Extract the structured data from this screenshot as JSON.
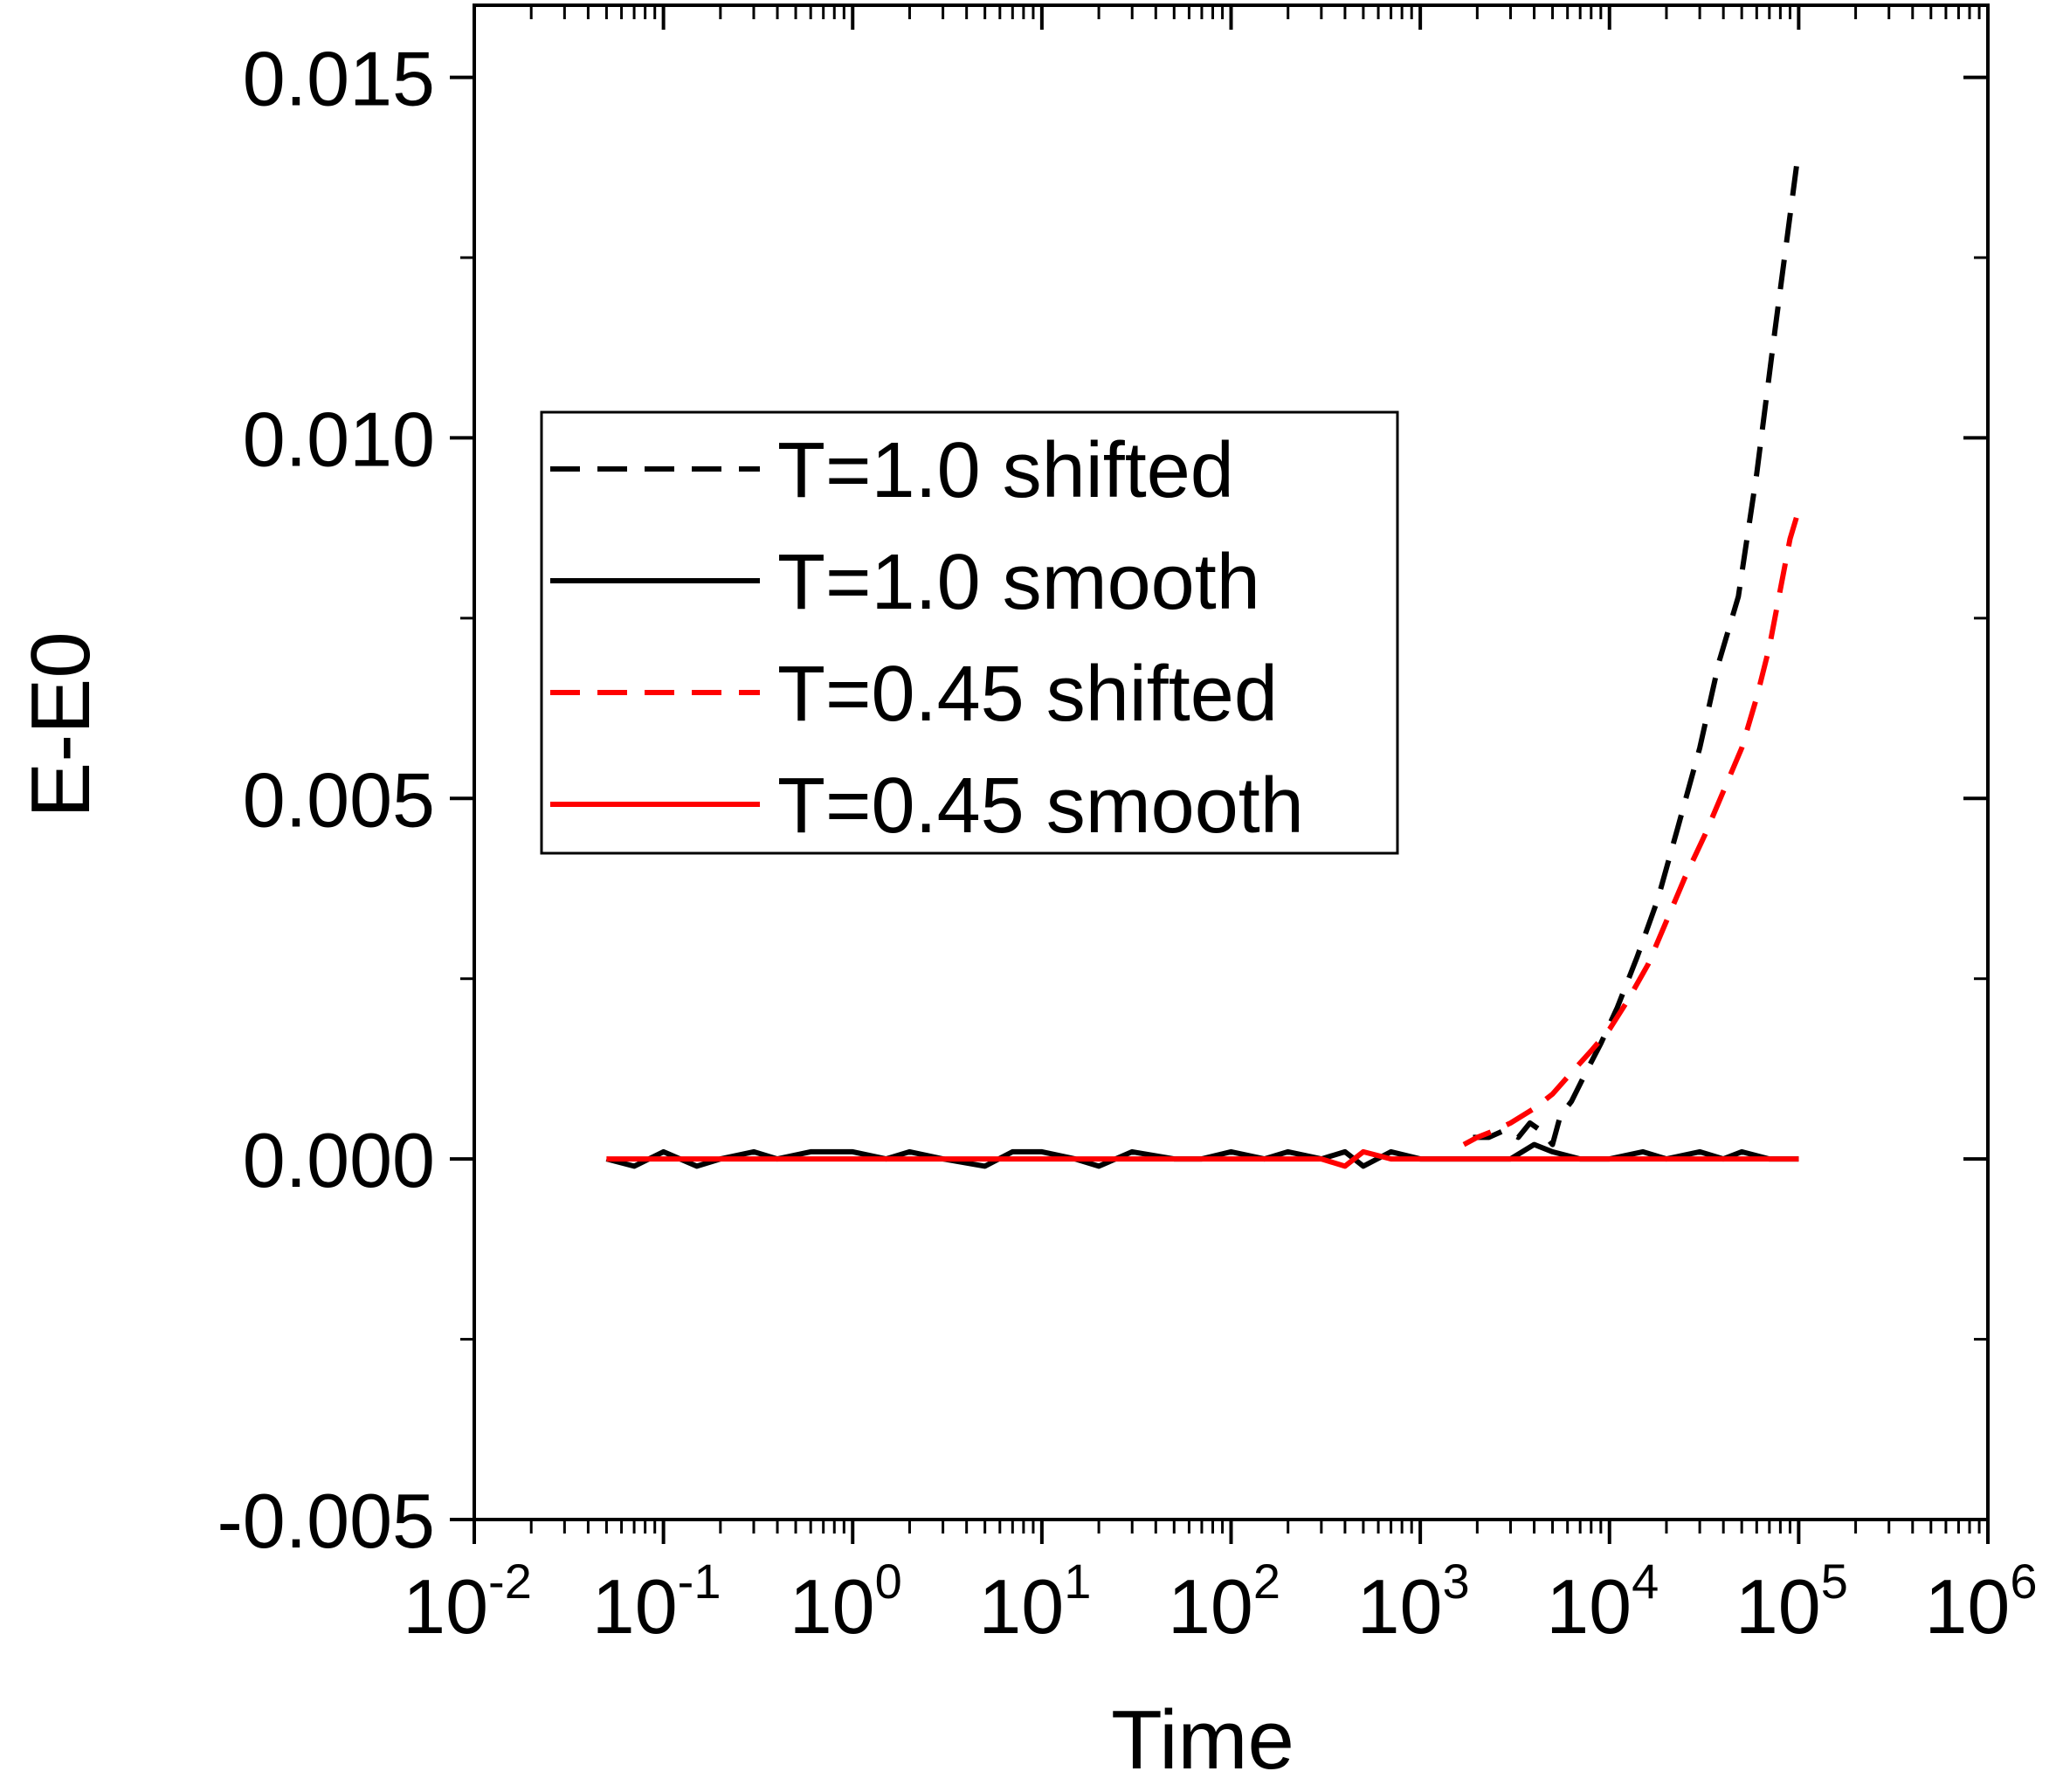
{
  "chart_data": {
    "type": "line",
    "xlabel": "Time",
    "ylabel": "E-E0",
    "xscale": "log",
    "xlim": [
      0.01,
      1000000
    ],
    "ylim": [
      -0.005,
      0.016
    ],
    "grid": false,
    "legend_position": "upper-left",
    "x_ticks": [
      {
        "value": 0.01,
        "base": "10",
        "exp": "-2"
      },
      {
        "value": 0.1,
        "base": "10",
        "exp": "-1"
      },
      {
        "value": 1,
        "base": "10",
        "exp": "0"
      },
      {
        "value": 10,
        "base": "10",
        "exp": "1"
      },
      {
        "value": 100,
        "base": "10",
        "exp": "2"
      },
      {
        "value": 1000,
        "base": "10",
        "exp": "3"
      },
      {
        "value": 10000,
        "base": "10",
        "exp": "4"
      },
      {
        "value": 100000,
        "base": "10",
        "exp": "5"
      },
      {
        "value": 1000000,
        "base": "10",
        "exp": "6"
      }
    ],
    "y_ticks": [
      {
        "value": -0.005,
        "label": "-0.005"
      },
      {
        "value": 0.0,
        "label": "0.000"
      },
      {
        "value": 0.005,
        "label": "0.005"
      },
      {
        "value": 0.01,
        "label": "0.010"
      },
      {
        "value": 0.015,
        "label": "0.015"
      }
    ],
    "series": [
      {
        "name": "T=1.0 shifted",
        "color": "#000000",
        "dash": "dashed",
        "x": [
          1900,
          2300,
          2800,
          3300,
          3800,
          4300,
          5000,
          5500,
          6300,
          7500,
          9000,
          11000,
          14000,
          18000,
          23000,
          30000,
          38000,
          48000,
          60000,
          75000,
          100000
        ],
        "y": [
          0.0003,
          0.0003,
          0.0004,
          0.0003,
          0.0005,
          0.0004,
          0.0002,
          0.0006,
          0.0008,
          0.0012,
          0.0016,
          0.0021,
          0.0028,
          0.0036,
          0.0046,
          0.0057,
          0.0069,
          0.0078,
          0.0095,
          0.0115,
          0.014
        ]
      },
      {
        "name": "T=1.0 smooth",
        "color": "#000000",
        "dash": "solid",
        "x": [
          0.05,
          0.07,
          0.1,
          0.15,
          0.2,
          0.3,
          0.4,
          0.6,
          1,
          1.5,
          2,
          3,
          5,
          7,
          10,
          15,
          20,
          30,
          50,
          70,
          100,
          150,
          200,
          300,
          400,
          500,
          700,
          1000,
          1500,
          2000,
          3000,
          4000,
          5000,
          7000,
          10000,
          15000,
          20000,
          30000,
          40000,
          50000,
          70000,
          100000
        ],
        "y": [
          0.0,
          -0.0001,
          0.0001,
          -0.0001,
          0.0,
          0.0001,
          0.0,
          0.0001,
          0.0001,
          0.0,
          0.0001,
          0.0,
          -0.0001,
          0.0001,
          0.0001,
          0.0,
          -0.0001,
          0.0001,
          0.0,
          0.0,
          0.0001,
          0.0,
          0.0001,
          0.0,
          0.0001,
          -0.0001,
          0.0001,
          0.0,
          0.0,
          0.0,
          0.0,
          0.0002,
          0.0001,
          0.0,
          0.0,
          0.0001,
          0.0,
          0.0001,
          0.0,
          0.0001,
          0.0,
          0.0
        ]
      },
      {
        "name": "T=0.45 shifted",
        "color": "#ff0000",
        "dash": "dashed",
        "x": [
          1700,
          2000,
          2500,
          3000,
          4000,
          5000,
          6300,
          8000,
          10000,
          12500,
          16000,
          20000,
          25000,
          32000,
          40000,
          50000,
          60000,
          70000,
          80000,
          90000,
          100000
        ],
        "y": [
          0.0002,
          0.0003,
          0.0004,
          0.0005,
          0.0007,
          0.0009,
          0.0012,
          0.0015,
          0.0018,
          0.0022,
          0.0027,
          0.0033,
          0.0039,
          0.0045,
          0.0051,
          0.0057,
          0.0064,
          0.0071,
          0.0079,
          0.0086,
          0.009
        ]
      },
      {
        "name": "T=0.45 smooth",
        "color": "#ff0000",
        "dash": "solid",
        "x": [
          0.05,
          0.1,
          0.2,
          0.3,
          0.5,
          1,
          2,
          3,
          5,
          10,
          20,
          50,
          100,
          200,
          300,
          400,
          500,
          700,
          1000,
          1500,
          2000,
          3000,
          5000,
          10000,
          20000,
          50000,
          100000
        ],
        "y": [
          0.0,
          0.0,
          0.0,
          0.0,
          0.0,
          0.0,
          0.0,
          0.0,
          0.0,
          0.0,
          0.0,
          0.0,
          0.0,
          0.0,
          0.0,
          -0.0001,
          0.0001,
          0.0,
          0.0,
          0.0,
          0.0,
          0.0,
          0.0,
          0.0,
          0.0,
          0.0,
          0.0
        ]
      }
    ]
  }
}
